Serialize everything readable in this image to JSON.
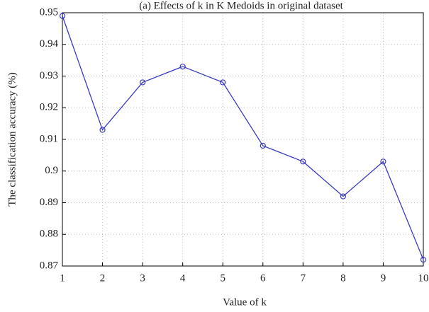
{
  "chart_data": {
    "type": "line",
    "title": "(a) Effects of k in K Medoids in original dataset",
    "xlabel": "Value of k",
    "ylabel": "The classification accuracy (%)",
    "x": [
      1,
      2,
      3,
      4,
      5,
      6,
      7,
      8,
      9,
      10
    ],
    "values": [
      0.949,
      0.913,
      0.928,
      0.933,
      0.928,
      0.908,
      0.903,
      0.892,
      0.903,
      0.872
    ],
    "color": "#3b3bbf",
    "xlim": [
      1,
      10
    ],
    "xticks": [
      1,
      2,
      3,
      4,
      5,
      6,
      7,
      8,
      9,
      10
    ],
    "ylim": [
      0.87,
      0.95
    ],
    "yticks": [
      0.87,
      0.88,
      0.89,
      0.9,
      0.91,
      0.92,
      0.93,
      0.94,
      0.95
    ],
    "grid": true
  }
}
